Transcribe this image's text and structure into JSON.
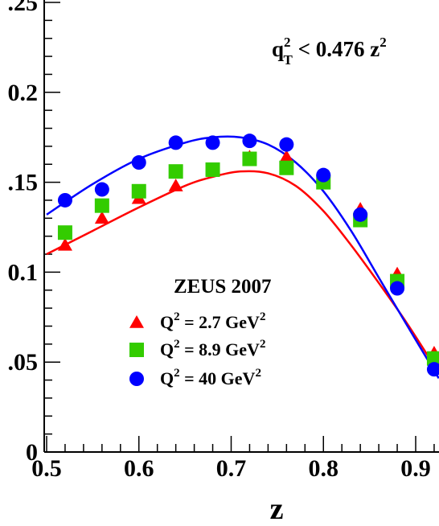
{
  "chart_data": {
    "type": "scatter",
    "title": "",
    "xlabel": "z",
    "ylabel": "",
    "xlim": [
      0.5,
      0.925
    ],
    "ylim": [
      0,
      0.25
    ],
    "x_ticks": [
      0.5,
      0.6,
      0.7,
      0.8,
      0.9
    ],
    "x_tick_labels": [
      "0.5",
      "0.6",
      "0.7",
      "0.8",
      "0.9"
    ],
    "y_ticks": [
      0,
      0.05,
      0.1,
      0.15,
      0.2,
      0.25
    ],
    "y_tick_labels": [
      "0",
      ".05",
      "0.1",
      ".15",
      "0.2",
      ".25"
    ],
    "grid": false,
    "legend_position": "center-left",
    "annotation": {
      "main": "q",
      "sub": "T",
      "sup": "2",
      "rest": " < 0.476 z",
      "rest_sup": "2"
    },
    "legend_title": "ZEUS 2007",
    "series": [
      {
        "name": "Q² = 2.7 GeV²",
        "legend": {
          "a": "Q",
          "a_sup": "2",
          "b": " = 2.7 GeV",
          "b_sup": "2"
        },
        "marker": "triangle",
        "color": "#ff0000",
        "x": [
          0.52,
          0.56,
          0.6,
          0.64,
          0.68,
          0.72,
          0.76,
          0.8,
          0.84,
          0.88,
          0.92
        ],
        "y": [
          0.115,
          0.13,
          0.141,
          0.148,
          0.157,
          0.164,
          0.164,
          0.151,
          0.135,
          0.099,
          0.055
        ]
      },
      {
        "name": "Q² = 8.9 GeV²",
        "legend": {
          "a": "Q",
          "a_sup": "2",
          "b": " = 8.9 GeV",
          "b_sup": "2"
        },
        "marker": "square",
        "color": "#33cc00",
        "x": [
          0.52,
          0.56,
          0.6,
          0.64,
          0.68,
          0.72,
          0.76,
          0.8,
          0.84,
          0.88,
          0.92
        ],
        "y": [
          0.122,
          0.137,
          0.145,
          0.156,
          0.157,
          0.163,
          0.158,
          0.15,
          0.129,
          0.095,
          0.052
        ]
      },
      {
        "name": "Q² = 40 GeV²",
        "legend": {
          "a": "Q",
          "a_sup": "2",
          "b": " = 40 GeV",
          "b_sup": "2"
        },
        "marker": "circle",
        "color": "#0000ff",
        "x": [
          0.52,
          0.56,
          0.6,
          0.64,
          0.68,
          0.72,
          0.76,
          0.8,
          0.84,
          0.88,
          0.92
        ],
        "y": [
          0.14,
          0.146,
          0.161,
          0.172,
          0.172,
          0.173,
          0.171,
          0.154,
          0.132,
          0.091,
          0.046
        ]
      }
    ],
    "curves": [
      {
        "color": "#ff0000",
        "x": [
          0.5,
          0.55,
          0.6,
          0.65,
          0.68,
          0.71,
          0.74,
          0.77,
          0.8,
          0.83,
          0.86,
          0.89,
          0.925
        ],
        "y": [
          0.11,
          0.123,
          0.136,
          0.148,
          0.153,
          0.156,
          0.155,
          0.148,
          0.134,
          0.115,
          0.094,
          0.072,
          0.044
        ]
      },
      {
        "color": "#0000ff",
        "x": [
          0.5,
          0.55,
          0.6,
          0.65,
          0.68,
          0.71,
          0.74,
          0.77,
          0.8,
          0.83,
          0.86,
          0.89,
          0.925
        ],
        "y": [
          0.132,
          0.149,
          0.163,
          0.172,
          0.175,
          0.175,
          0.171,
          0.161,
          0.145,
          0.123,
          0.097,
          0.071,
          0.041
        ]
      }
    ]
  }
}
